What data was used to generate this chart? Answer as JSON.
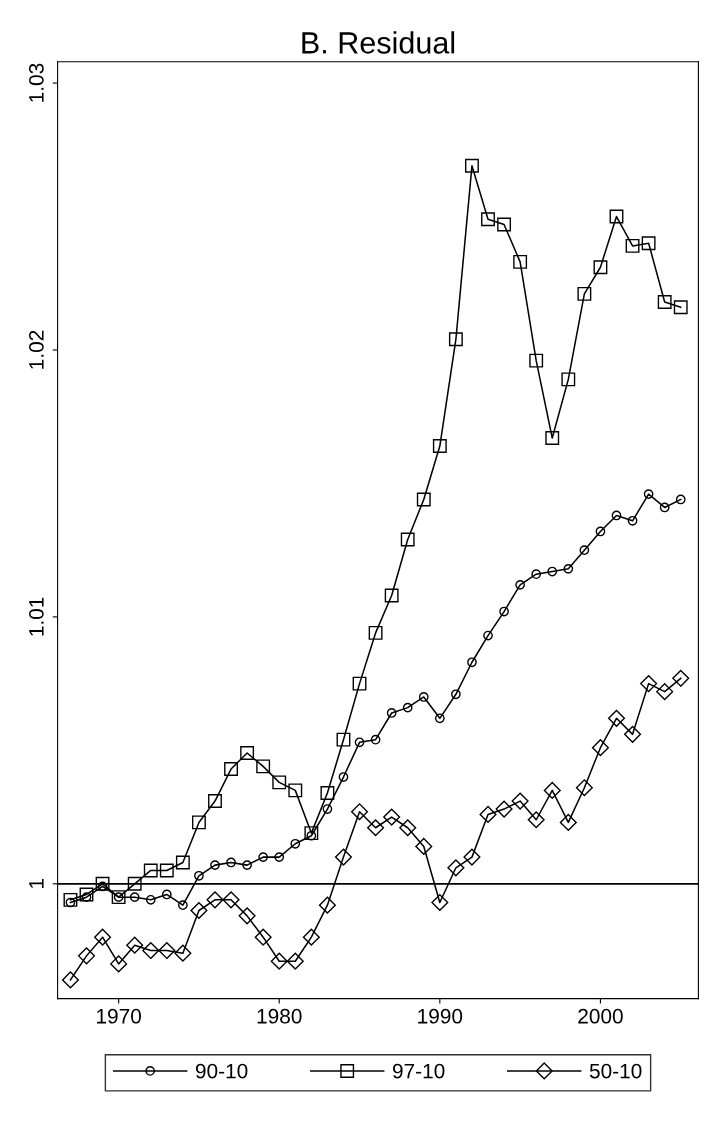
{
  "chart_data": {
    "type": "line",
    "title": "B. Residual",
    "x": [
      1967,
      1968,
      1969,
      1970,
      1971,
      1972,
      1973,
      1974,
      1975,
      1976,
      1977,
      1978,
      1979,
      1980,
      1981,
      1982,
      1983,
      1984,
      1985,
      1986,
      1987,
      1988,
      1989,
      1990,
      1991,
      1992,
      1993,
      1994,
      1995,
      1996,
      1997,
      1998,
      1999,
      2000,
      2001,
      2002,
      2003,
      2004,
      2005
    ],
    "series": [
      {
        "name": "90-10",
        "color": "#000000",
        "marker": "circle",
        "values": [
          0.9993,
          0.9995,
          0.9999,
          0.9995,
          0.9995,
          0.9994,
          0.9996,
          0.9992,
          1.0003,
          1.0007,
          1.0008,
          1.0007,
          1.001,
          1.001,
          1.0015,
          1.0018,
          1.0028,
          1.004,
          1.0053,
          1.0054,
          1.0064,
          1.0066,
          1.007,
          1.0062,
          1.0071,
          1.0083,
          1.0093,
          1.0102,
          1.0112,
          1.0116,
          1.0117,
          1.0118,
          1.0125,
          1.0132,
          1.0138,
          1.0136,
          1.0146,
          1.0141,
          1.0144
        ]
      },
      {
        "name": "97-10",
        "color": "#000000",
        "marker": "square",
        "values": [
          0.9994,
          0.9996,
          1.0,
          0.9995,
          1.0,
          1.0005,
          1.0005,
          1.0008,
          1.0023,
          1.0031,
          1.0043,
          1.0049,
          1.0044,
          1.0038,
          1.0035,
          1.0019,
          1.0034,
          1.0054,
          1.0075,
          1.0094,
          1.0108,
          1.0129,
          1.0144,
          1.0164,
          1.0204,
          1.0269,
          1.0249,
          1.0247,
          1.0233,
          1.0196,
          1.0167,
          1.0189,
          1.0221,
          1.0231,
          1.025,
          1.0239,
          1.024,
          1.0218,
          1.0216
        ]
      },
      {
        "name": "50-10",
        "color": "#000000",
        "marker": "diamond",
        "values": [
          0.9964,
          0.9973,
          0.998,
          0.997,
          0.9977,
          0.9975,
          0.9975,
          0.9974,
          0.999,
          0.9994,
          0.9994,
          0.9988,
          0.998,
          0.9971,
          0.9971,
          0.998,
          0.9992,
          1.001,
          1.0027,
          1.0021,
          1.0025,
          1.0021,
          1.0014,
          0.9993,
          1.0006,
          1.001,
          1.0026,
          1.0028,
          1.0031,
          1.0024,
          1.0035,
          1.0023,
          1.0036,
          1.0051,
          1.0062,
          1.0056,
          1.0075,
          1.0072,
          1.0077
        ]
      }
    ],
    "xlim": [
      1966.2,
      2006.1
    ],
    "ylim": [
      0.9957,
      1.0308
    ],
    "xticks": [
      1970,
      1980,
      1990,
      2000
    ],
    "yticks": [
      {
        "value": 1,
        "label": "1"
      },
      1.01,
      1.02,
      1.03
    ],
    "ref_lines": [
      {
        "axis": "y",
        "value": 1,
        "color": "#000000"
      }
    ],
    "grid": false,
    "legend": "bottom",
    "line_style": "solid"
  }
}
